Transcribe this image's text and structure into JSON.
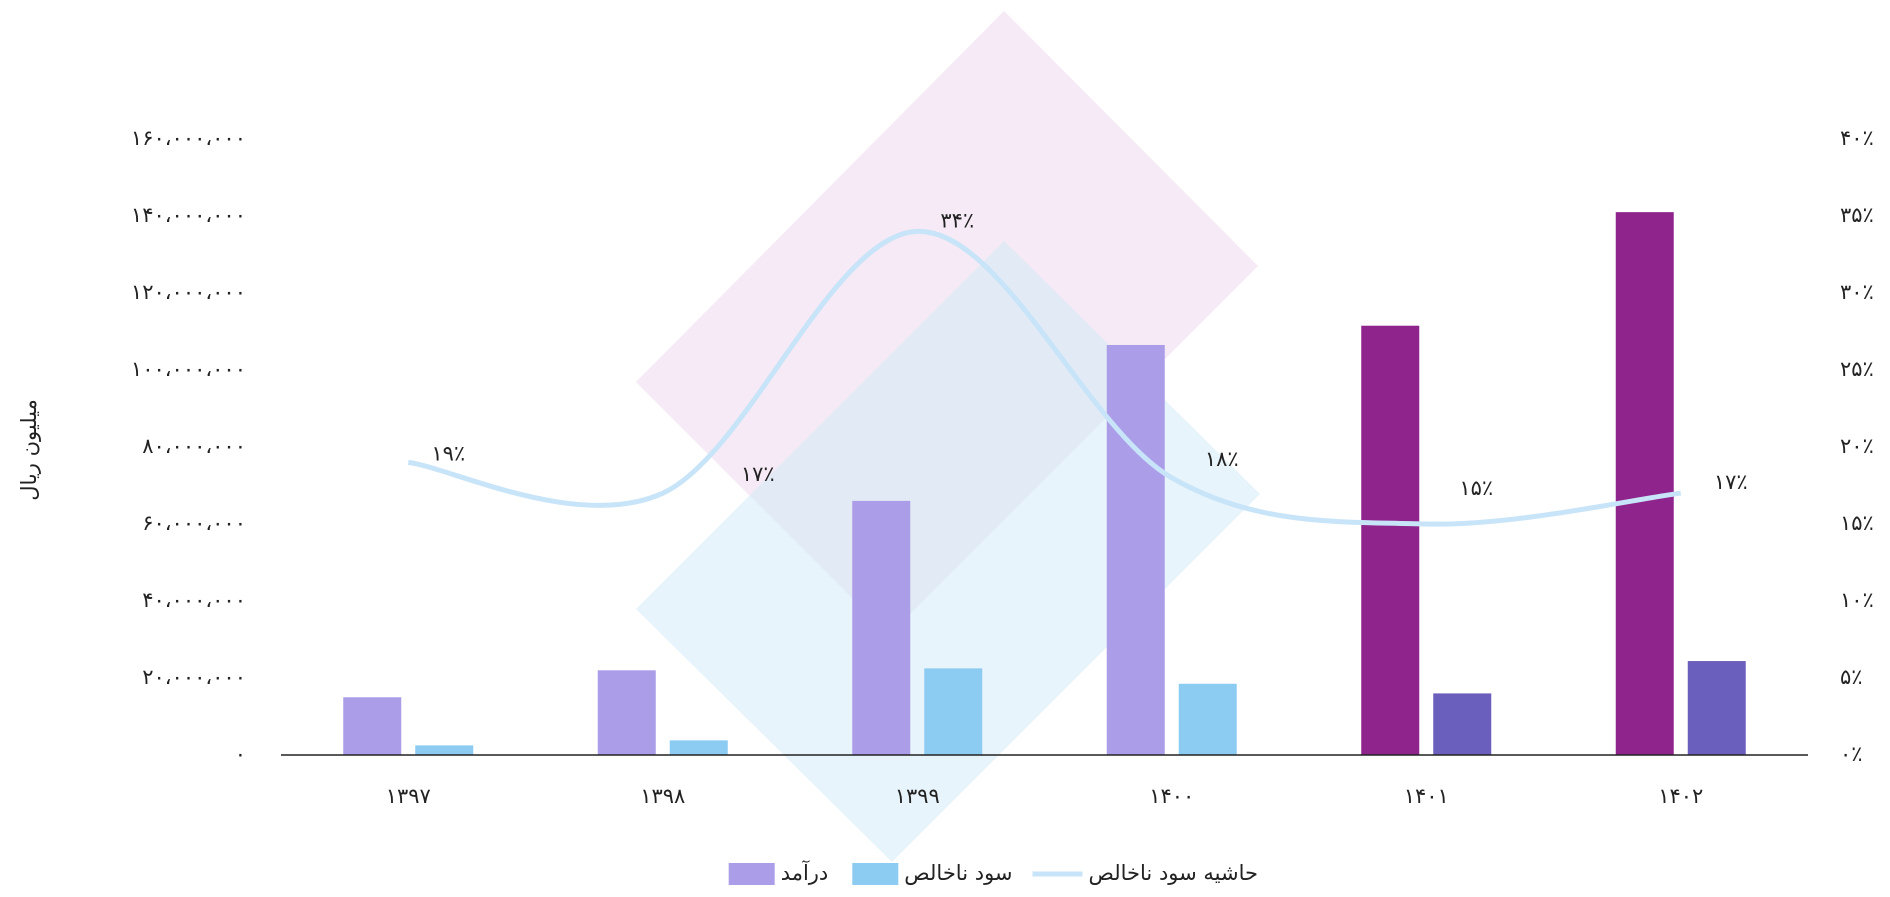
{
  "chart_data": {
    "type": "bar",
    "categories": [
      "۱۳۹۷",
      "۱۳۹۸",
      "۱۳۹۹",
      "۱۴۰۰",
      "۱۴۰۱",
      "۱۴۰۲"
    ],
    "ylabel": "میلیون ریال",
    "series": [
      {
        "name": "درآمد",
        "type": "bar",
        "color": "#ab9de8",
        "colors": [
          "#ab9de8",
          "#ab9de8",
          "#ab9de8",
          "#ab9de8",
          "#8e248c",
          "#8e248c"
        ],
        "values": [
          15000000,
          22000000,
          66000000,
          106500000,
          111500000,
          141000000
        ]
      },
      {
        "name": "سود ناخالص",
        "type": "bar",
        "color": "#8ccbf2",
        "colors": [
          "#8ccbf2",
          "#8ccbf2",
          "#8ccbf2",
          "#8ccbf2",
          "#6a5fbd",
          "#6a5fbd"
        ],
        "values": [
          2500000,
          3800000,
          22500000,
          18500000,
          16000000,
          24400000
        ]
      },
      {
        "name": "حاشیه سود ناخالص",
        "type": "line",
        "axis": "y2",
        "color": "#c8e4f8",
        "values": [
          19,
          17,
          34,
          18,
          15,
          17
        ],
        "value_labels": [
          "۱۹٪",
          "۱۷٪",
          "۳۴٪",
          "۱۸٪",
          "۱۵٪",
          "۱۷٪"
        ]
      }
    ],
    "ylim": [
      0,
      160000000
    ],
    "yticks": [
      {
        "value": 0,
        "label": "۰"
      },
      {
        "value": 20000000,
        "label": "۲۰،۰۰۰،۰۰۰"
      },
      {
        "value": 40000000,
        "label": "۴۰،۰۰۰،۰۰۰"
      },
      {
        "value": 60000000,
        "label": "۶۰،۰۰۰،۰۰۰"
      },
      {
        "value": 80000000,
        "label": "۸۰،۰۰۰،۰۰۰"
      },
      {
        "value": 100000000,
        "label": "۱۰۰،۰۰۰،۰۰۰"
      },
      {
        "value": 120000000,
        "label": "۱۲۰،۰۰۰،۰۰۰"
      },
      {
        "value": 140000000,
        "label": "۱۴۰،۰۰۰،۰۰۰"
      },
      {
        "value": 160000000,
        "label": "۱۶۰،۰۰۰،۰۰۰"
      }
    ],
    "y2lim": [
      0,
      40
    ],
    "y2ticks": [
      {
        "value": 0,
        "label": "۰٪"
      },
      {
        "value": 5,
        "label": "۵٪"
      },
      {
        "value": 10,
        "label": "۱۰٪"
      },
      {
        "value": 15,
        "label": "۱۵٪"
      },
      {
        "value": 20,
        "label": "۲۰٪"
      },
      {
        "value": 25,
        "label": "۲۵٪"
      },
      {
        "value": 30,
        "label": "۳۰٪"
      },
      {
        "value": 35,
        "label": "۳۵٪"
      },
      {
        "value": 40,
        "label": "۴۰٪"
      }
    ],
    "legend": "bottom",
    "grid": false
  }
}
